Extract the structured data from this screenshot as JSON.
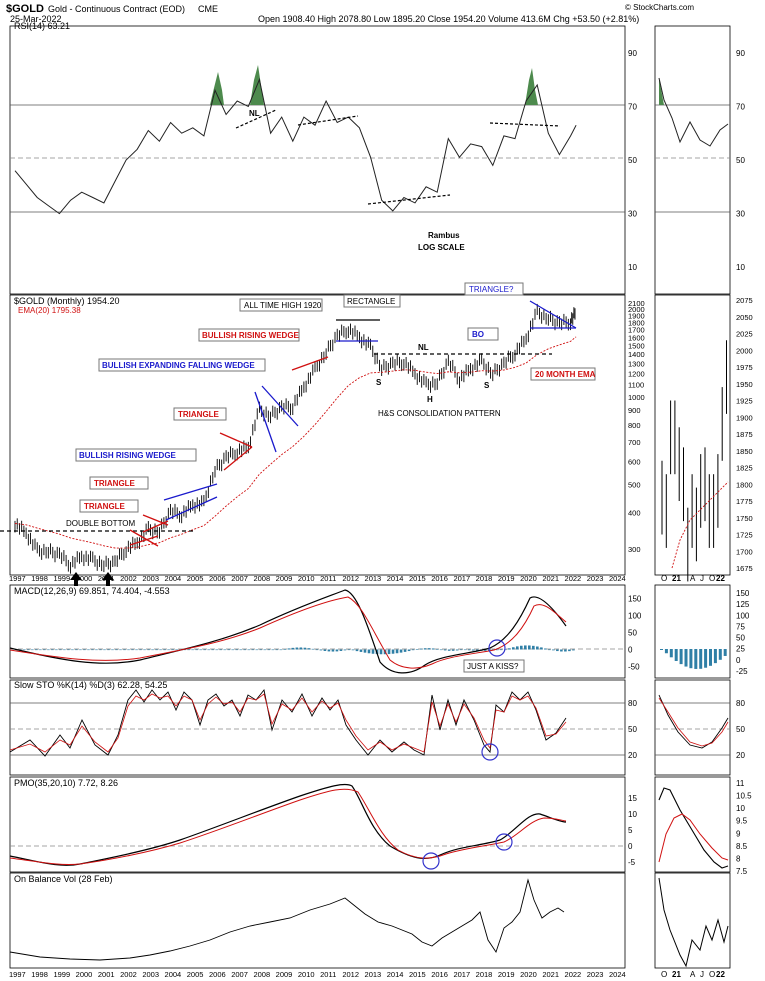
{
  "header": {
    "symbol": "$GOLD",
    "name": "Gold - Continuous Contract (EOD)",
    "exchange": "CME",
    "date": "25-Mar-2022",
    "quote": "Open 1908.40   High 2078.80   Low 1895.20   Close 1954.20   Volume 413.6M   Chg +53.50 (+2.81%)",
    "credit": "© StockCharts.com"
  },
  "colors": {
    "price": "#000000",
    "ema": "#d01010",
    "blue_pattern": "#1a1acc",
    "red_pattern": "#d01010",
    "rsi_fill": "#4d8a4d",
    "macd_hist": "#2f7fa6",
    "circle": "#3333cc"
  },
  "x_axis": {
    "years": [
      "1997",
      "1998",
      "1999",
      "2000",
      "2001",
      "2002",
      "2003",
      "2004",
      "2005",
      "2006",
      "2007",
      "2008",
      "2009",
      "2010",
      "2011",
      "2012",
      "2013",
      "2014",
      "2015",
      "2016",
      "2017",
      "2018",
      "2019",
      "2020",
      "2021",
      "2022",
      "2023",
      "2024"
    ]
  },
  "side_axis": {
    "labels": [
      "O",
      "21",
      "A",
      "J",
      "O",
      "22"
    ]
  },
  "chart_data": [
    {
      "panel": "rsi",
      "type": "line",
      "title": "RSI(14) 63.21",
      "ylim": [
        0,
        100
      ],
      "ticks": [
        90,
        70,
        50,
        30,
        10
      ],
      "reference_lines": [
        70,
        50,
        30
      ],
      "x": [
        1997.0,
        1997.5,
        1998.0,
        1998.5,
        1999.0,
        1999.5,
        2000.0,
        2000.5,
        2001.0,
        2001.5,
        2002.0,
        2002.5,
        2003.0,
        2003.5,
        2004.0,
        2004.5,
        2005.0,
        2005.5,
        2006.0,
        2006.5,
        2007.0,
        2007.5,
        2008.0,
        2008.5,
        2009.0,
        2009.5,
        2010.0,
        2010.5,
        2011.0,
        2011.5,
        2012.0,
        2012.5,
        2013.0,
        2013.5,
        2014.0,
        2014.5,
        2015.0,
        2015.5,
        2016.0,
        2016.5,
        2017.0,
        2017.5,
        2018.0,
        2018.5,
        2019.0,
        2019.5,
        2020.0,
        2020.5,
        2021.0,
        2021.5,
        2022.0,
        2022.25
      ],
      "values": [
        46,
        41,
        36,
        33,
        30,
        35,
        38,
        36,
        34,
        42,
        50,
        54,
        61,
        57,
        64,
        60,
        62,
        59,
        76,
        67,
        72,
        70,
        80,
        60,
        66,
        57,
        66,
        63,
        72,
        64,
        66,
        62,
        51,
        35,
        31,
        36,
        34,
        40,
        38,
        58,
        51,
        56,
        55,
        48,
        59,
        58,
        72,
        78,
        60,
        52,
        59,
        63
      ],
      "annotations": [
        "NL"
      ]
    },
    {
      "panel": "price",
      "type": "line",
      "title": "$GOLD (Monthly) 1954.20",
      "series": [
        {
          "name": "EMA(20) 1795.38"
        }
      ],
      "scale": "log",
      "ylim": [
        250,
        2150
      ],
      "ticks": [
        2100,
        2000,
        1900,
        1800,
        1700,
        1600,
        1500,
        1400,
        1300,
        1200,
        1100,
        1000,
        900,
        800,
        700,
        600,
        500,
        400,
        300
      ],
      "x": [
        1997.0,
        1997.5,
        1998.0,
        1998.5,
        1999.0,
        1999.5,
        2000.0,
        2000.5,
        2001.0,
        2001.5,
        2002.0,
        2002.5,
        2003.0,
        2003.5,
        2004.0,
        2004.5,
        2005.0,
        2005.5,
        2006.0,
        2006.5,
        2007.0,
        2007.5,
        2008.0,
        2008.5,
        2009.0,
        2009.5,
        2010.0,
        2010.5,
        2011.0,
        2011.5,
        2012.0,
        2012.5,
        2013.0,
        2013.5,
        2014.0,
        2014.5,
        2015.0,
        2015.5,
        2016.0,
        2016.5,
        2017.0,
        2017.5,
        2018.0,
        2018.5,
        2019.0,
        2019.5,
        2020.0,
        2020.5,
        2021.0,
        2021.5,
        2022.0,
        2022.25
      ],
      "values": [
        367,
        340,
        296,
        295,
        287,
        265,
        283,
        275,
        265,
        270,
        300,
        315,
        350,
        345,
        405,
        395,
        425,
        430,
        560,
        620,
        650,
        670,
        900,
        860,
        920,
        930,
        1080,
        1240,
        1420,
        1620,
        1710,
        1600,
        1480,
        1250,
        1300,
        1320,
        1200,
        1100,
        1120,
        1320,
        1150,
        1250,
        1320,
        1200,
        1300,
        1420,
        1580,
        1950,
        1860,
        1790,
        1820,
        1954
      ],
      "annotations": [
        "DOUBLE BOTTOM",
        "TRIANGLE",
        "TRIANGLE",
        "BULLISH RISING WEDGE",
        "TRIANGLE",
        "BULLISH EXPANDING FALLING WEDGE",
        "BULLISH RISING WEDGE",
        "ALL TIME HIGH 1920",
        "RECTANGLE",
        "NL",
        "S",
        "H",
        "S",
        "H&S CONSOLIDATION PATTERN",
        "BO",
        "20 MONTH EMA",
        "TRIANGLE?",
        "Rambus",
        "LOG SCALE"
      ]
    },
    {
      "panel": "price_side",
      "type": "line",
      "ylim": [
        1675,
        2075
      ],
      "ticks": [
        2075,
        2050,
        2025,
        2000,
        1975,
        1950,
        1925,
        1900,
        1875,
        1850,
        1825,
        1800,
        1775,
        1750,
        1725,
        1700,
        1675
      ]
    },
    {
      "panel": "macd",
      "type": "line",
      "title": "MACD(12,26,9) 69.851, 74.404, -4.553",
      "ylim": [
        -75,
        175
      ],
      "ticks": [
        150,
        100,
        50,
        0,
        -50
      ],
      "annotations": [
        "JUST A KISS?"
      ]
    },
    {
      "panel": "macd_side",
      "type": "line",
      "ticks": [
        150,
        125,
        100,
        75,
        50,
        25,
        0,
        -25
      ]
    },
    {
      "panel": "sto",
      "type": "line",
      "title": "Slow STO %K(14) %D(3) 62.28, 54.25",
      "ylim": [
        0,
        100
      ],
      "ticks": [
        80,
        50,
        20
      ],
      "reference_lines": [
        80,
        50,
        20
      ]
    },
    {
      "panel": "pmo",
      "type": "line",
      "title": "PMO(35,20,10) 7.72, 8.26",
      "ylim": [
        -8,
        20
      ],
      "ticks": [
        15,
        10,
        5,
        0,
        -5
      ]
    },
    {
      "panel": "pmo_side",
      "type": "line",
      "ticks": [
        11.0,
        10.5,
        10.0,
        9.5,
        9.0,
        8.5,
        8.0,
        7.5
      ]
    },
    {
      "panel": "obv",
      "type": "line",
      "title": "On Balance Vol (28 Feb)"
    }
  ]
}
